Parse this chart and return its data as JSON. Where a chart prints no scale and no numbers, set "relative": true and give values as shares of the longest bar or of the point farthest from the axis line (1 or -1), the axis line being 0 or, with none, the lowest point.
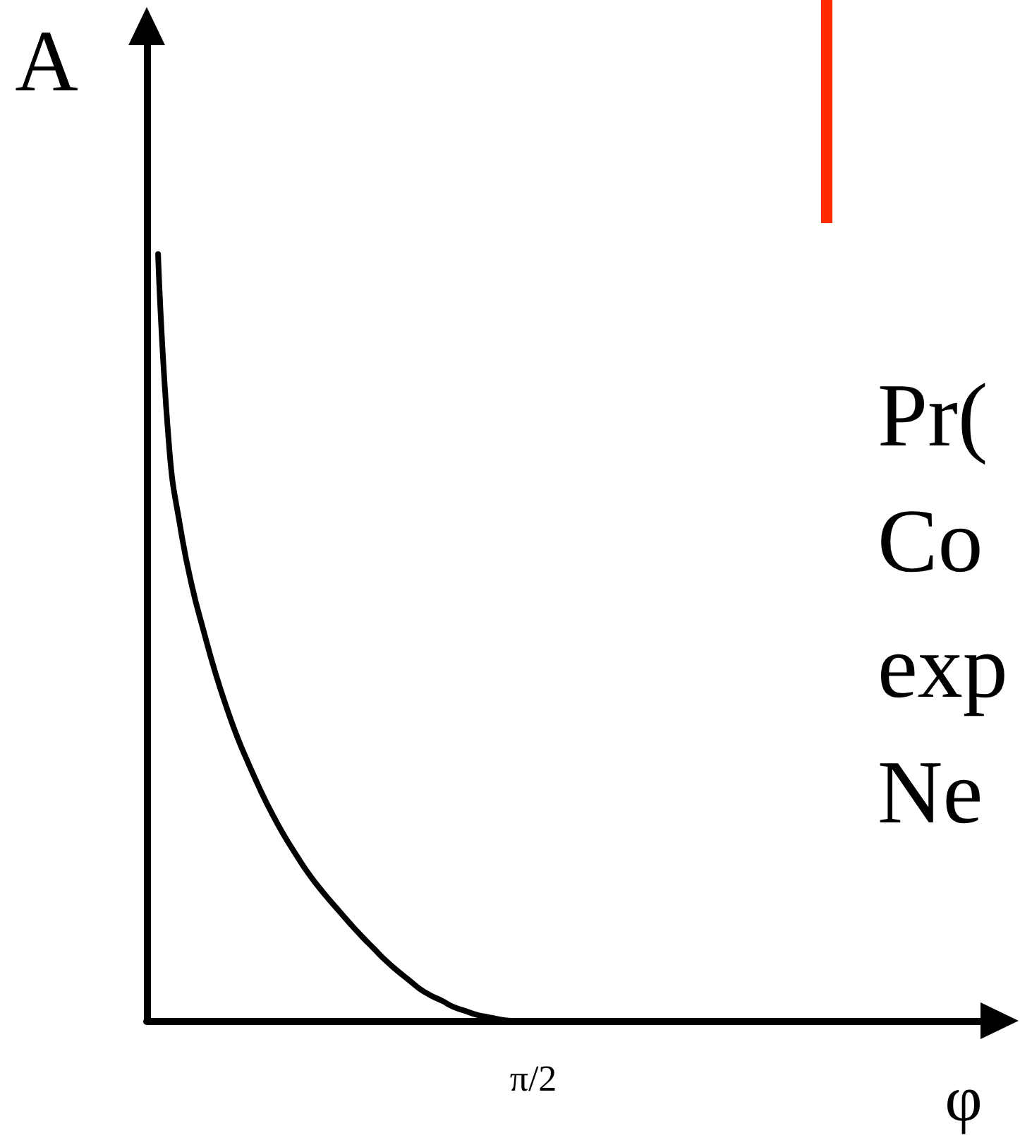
{
  "chart_data": {
    "type": "line",
    "xlabel": "φ",
    "ylabel": "A",
    "annotations": [
      "π/2",
      "Pr(",
      "Co",
      "exp",
      "Ne"
    ],
    "categories": [
      null,
      null,
      null,
      null,
      null,
      null,
      null,
      null,
      null,
      null,
      null,
      null,
      null,
      null,
      null,
      null,
      null,
      null,
      null,
      null,
      null,
      null,
      null,
      null,
      null,
      null,
      null,
      null,
      null,
      null,
      null,
      null,
      null,
      null,
      null,
      null,
      null,
      null,
      null,
      null,
      null,
      null,
      null,
      null,
      null,
      null,
      null,
      null,
      null,
      null,
      null,
      null,
      null,
      null,
      null,
      null,
      null,
      null,
      null,
      null,
      null,
      null,
      null,
      null,
      null,
      null,
      null,
      null,
      null,
      null,
      null,
      null,
      null,
      null,
      null
    ],
    "values": [
      null,
      1.0,
      0.744,
      0.64,
      0.566,
      0.509,
      0.456,
      0.41,
      0.369,
      0.334,
      0.301,
      0.271,
      0.244,
      0.22,
      0.197,
      0.177,
      0.159,
      0.142,
      0.125,
      0.109,
      0.094,
      0.079,
      0.066,
      0.054,
      0.042,
      0.033,
      0.026,
      0.018,
      0.013,
      0.008,
      0.005,
      0.002,
      0,
      null,
      null,
      null,
      null,
      null,
      null,
      null,
      null,
      null,
      null,
      null,
      null,
      null,
      null,
      null,
      null,
      null,
      null,
      null,
      null,
      null,
      null,
      null,
      null,
      null,
      null,
      null,
      null,
      null,
      null,
      null,
      null,
      null,
      null,
      null,
      null,
      null,
      null,
      null,
      null,
      null,
      null
    ],
    "color": "#000000",
    "relative": true,
    "grid": false,
    "marker": "none",
    "line_style": "solid"
  }
}
